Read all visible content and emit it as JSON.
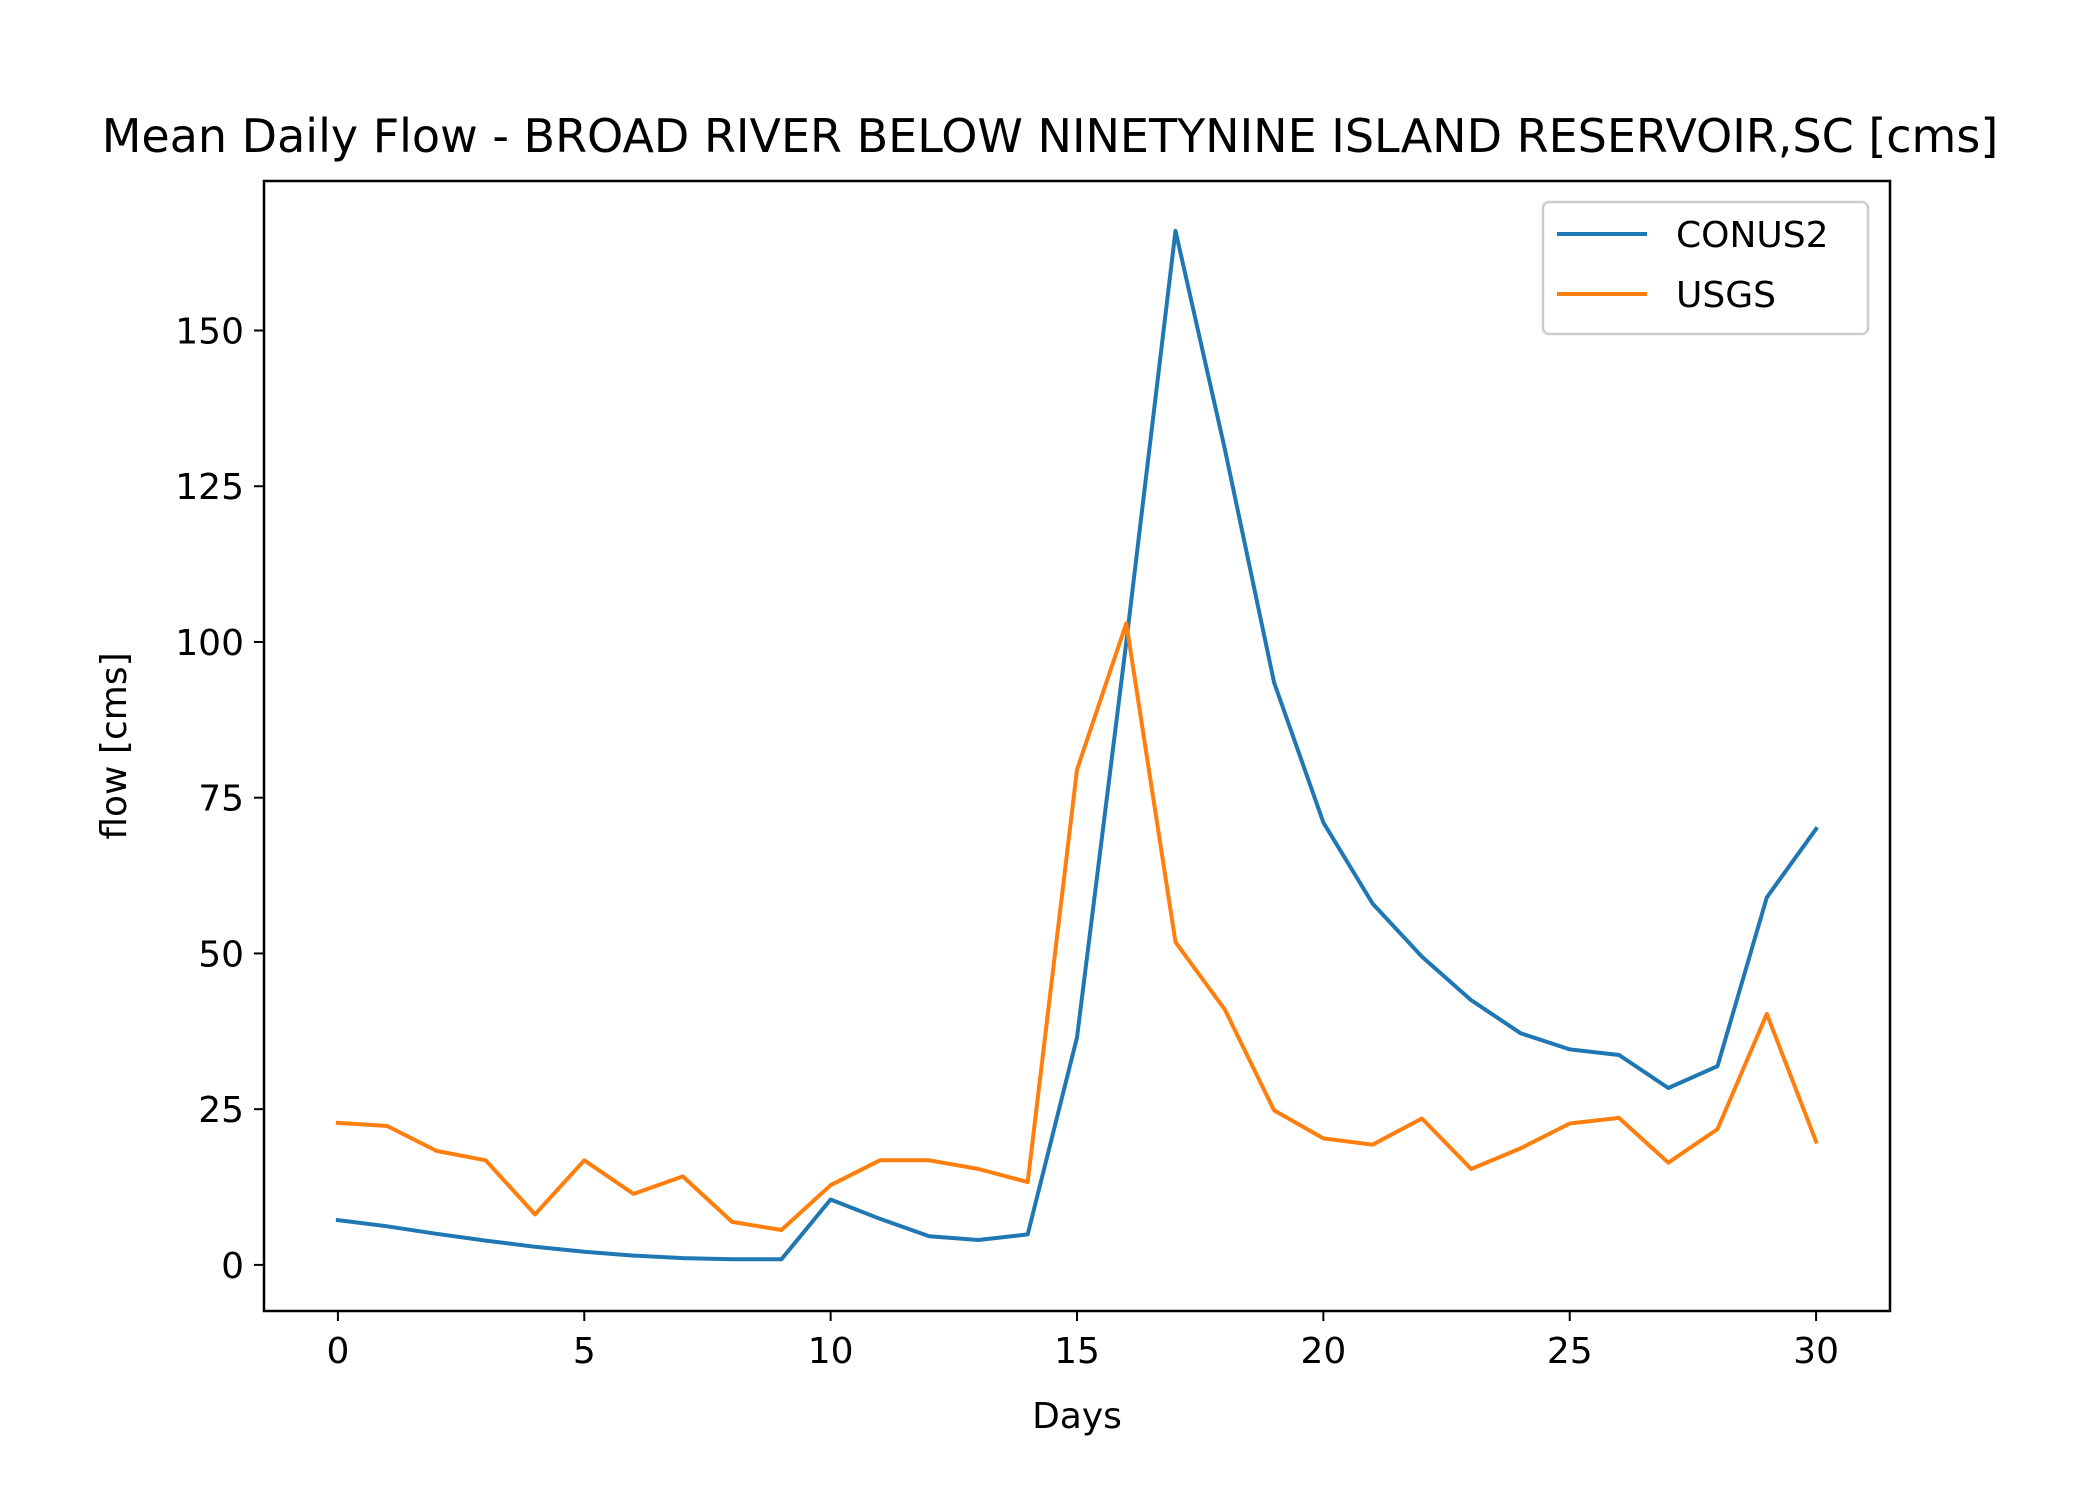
{
  "chart_data": {
    "type": "line",
    "title": "Mean Daily Flow - BROAD RIVER BELOW NINETYNINE ISLAND RESERVOIR,SC [cms]",
    "xlabel": "Days",
    "ylabel": "flow [cms]",
    "xlim": [
      -1.5,
      31.5
    ],
    "ylim": [
      -7.4,
      174
    ],
    "xticks": [
      0,
      5,
      10,
      15,
      20,
      25,
      30
    ],
    "yticks": [
      0,
      25,
      50,
      75,
      100,
      125,
      150
    ],
    "grid": false,
    "legend_position": "top-right",
    "x": [
      0,
      1,
      2,
      3,
      4,
      5,
      6,
      7,
      8,
      9,
      10,
      11,
      12,
      13,
      14,
      15,
      16,
      17,
      18,
      19,
      20,
      21,
      22,
      23,
      24,
      25,
      26,
      27,
      28,
      29,
      30
    ],
    "series": [
      {
        "name": "CONUS2",
        "color": "#1f77b4",
        "values": [
          7.2,
          6.2,
          5.0,
          3.9,
          2.9,
          2.1,
          1.5,
          1.1,
          0.9,
          0.9,
          10.5,
          7.4,
          4.6,
          4.0,
          4.9,
          36.5,
          100,
          166,
          131,
          93.5,
          71,
          58,
          49.5,
          42.5,
          37.2,
          34.6,
          33.7,
          28.4,
          31.9,
          59,
          70
        ]
      },
      {
        "name": "USGS",
        "color": "#ff7f0e",
        "values": [
          22.8,
          22.3,
          18.3,
          16.8,
          8.1,
          16.8,
          11.4,
          14.2,
          6.9,
          5.6,
          12.8,
          16.8,
          16.8,
          15.4,
          13.3,
          79.5,
          103,
          51.8,
          41,
          24.8,
          20.3,
          19.3,
          23.5,
          15.4,
          18.7,
          22.7,
          23.6,
          16.4,
          21.8,
          40.3,
          19.8
        ]
      }
    ]
  }
}
